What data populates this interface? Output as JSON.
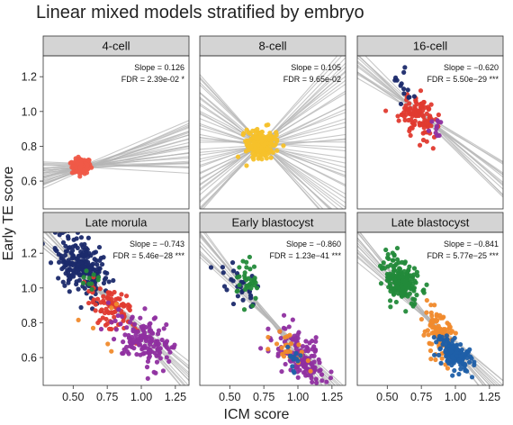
{
  "chart_data": {
    "type": "scatter",
    "title": "Linear mixed models stratified by embryo",
    "xlabel": "ICM score",
    "ylabel": "Early TE score",
    "x_ticks": [
      "0.50",
      "0.75",
      "1.00",
      "1.25"
    ],
    "y_ticks": [
      "0.6",
      "0.8",
      "1.0",
      "1.2"
    ],
    "x_tick_values": [
      0.5,
      0.75,
      1.0,
      1.25
    ],
    "y_tick_values": [
      0.6,
      0.8,
      1.0,
      1.2
    ],
    "xlim": [
      0.28,
      1.35
    ],
    "ylim": [
      0.44,
      1.32
    ],
    "grid": false,
    "colors": {
      "red": "#e03a2f",
      "orange_red": "#ef5a48",
      "yellow": "#f5c12a",
      "navy": "#1b2a6b",
      "purple": "#8f2fa0",
      "green": "#238a3a",
      "orange": "#f08a2c",
      "blue": "#1f5fa8",
      "fit_line": "#b5b5b5",
      "strip": "#d4d4d4"
    },
    "panels": [
      {
        "name": "4-cell",
        "slope_text": "Slope = 0.126",
        "fdr_text": "FDR = 2.39e-02 *",
        "slope": 0.126,
        "clusters": [
          {
            "color": "orange_red",
            "cx": 0.56,
            "cy": 0.685,
            "sx": 0.035,
            "sy": 0.022,
            "n": 140
          }
        ],
        "fit_lines": {
          "n": 30,
          "center_x": 0.6,
          "center_y": 0.685,
          "slope_min": -0.05,
          "slope_max": 0.35
        }
      },
      {
        "name": "8-cell",
        "slope_text": "Slope = 0.105",
        "fdr_text": "FDR = 9.65e-02",
        "slope": 0.105,
        "clusters": [
          {
            "color": "yellow",
            "cx": 0.73,
            "cy": 0.81,
            "sx": 0.05,
            "sy": 0.04,
            "n": 220
          }
        ],
        "fit_lines": {
          "n": 45,
          "center_x": 0.73,
          "center_y": 0.81,
          "slope_min": -0.9,
          "slope_max": 0.9
        }
      },
      {
        "name": "16-cell",
        "slope_text": "Slope = −0.620",
        "fdr_text": "FDR = 5.50e−29 ***",
        "slope": -0.62,
        "clusters": [
          {
            "color": "red",
            "cx": 0.73,
            "cy": 0.98,
            "sx": 0.06,
            "sy": 0.06,
            "n": 120
          },
          {
            "color": "navy",
            "cx": 0.62,
            "cy": 1.13,
            "sx": 0.035,
            "sy": 0.04,
            "n": 14
          },
          {
            "color": "purple",
            "cx": 0.85,
            "cy": 0.9,
            "sx": 0.04,
            "sy": 0.04,
            "n": 10
          }
        ],
        "fit_lines": {
          "n": 14,
          "center_x": 0.75,
          "center_y": 0.98,
          "slope_min": -0.8,
          "slope_max": -0.45
        }
      },
      {
        "name": "Late morula",
        "slope_text": "Slope = −0.743",
        "fdr_text": "FDR = 5.46e−28 ***",
        "slope": -0.743,
        "clusters": [
          {
            "color": "navy",
            "cx": 0.56,
            "cy": 1.12,
            "sx": 0.1,
            "sy": 0.08,
            "n": 220
          },
          {
            "color": "red",
            "cx": 0.78,
            "cy": 0.88,
            "sx": 0.09,
            "sy": 0.06,
            "n": 90
          },
          {
            "color": "purple",
            "cx": 1.02,
            "cy": 0.7,
            "sx": 0.1,
            "sy": 0.07,
            "n": 150
          },
          {
            "color": "green",
            "cx": 0.62,
            "cy": 1.02,
            "sx": 0.04,
            "sy": 0.04,
            "n": 10
          },
          {
            "color": "orange",
            "cx": 0.8,
            "cy": 0.8,
            "sx": 0.1,
            "sy": 0.1,
            "n": 6
          }
        ],
        "fit_lines": {
          "n": 14,
          "center_x": 0.8,
          "center_y": 0.9,
          "slope_min": -0.95,
          "slope_max": -0.6
        }
      },
      {
        "name": "Early blastocyst",
        "slope_text": "Slope = −0.860",
        "fdr_text": "FDR = 1.23e−41 ***",
        "slope": -0.86,
        "clusters": [
          {
            "color": "navy",
            "cx": 0.56,
            "cy": 1.05,
            "sx": 0.07,
            "sy": 0.07,
            "n": 30
          },
          {
            "color": "green",
            "cx": 0.64,
            "cy": 1.05,
            "sx": 0.04,
            "sy": 0.05,
            "n": 35
          },
          {
            "color": "purple",
            "cx": 1.02,
            "cy": 0.6,
            "sx": 0.1,
            "sy": 0.07,
            "n": 140
          },
          {
            "color": "orange",
            "cx": 0.93,
            "cy": 0.65,
            "sx": 0.06,
            "sy": 0.05,
            "n": 25
          },
          {
            "color": "blue",
            "cx": 0.97,
            "cy": 0.62,
            "sx": 0.04,
            "sy": 0.04,
            "n": 12
          }
        ],
        "fit_lines": {
          "n": 14,
          "center_x": 0.82,
          "center_y": 0.8,
          "slope_min": -1.05,
          "slope_max": -0.7
        }
      },
      {
        "name": "Late blastocyst",
        "slope_text": "Slope = −0.841",
        "fdr_text": "FDR = 5.77e−25 ***",
        "slope": -0.841,
        "clusters": [
          {
            "color": "green",
            "cx": 0.6,
            "cy": 1.04,
            "sx": 0.065,
            "sy": 0.06,
            "n": 190
          },
          {
            "color": "orange",
            "cx": 0.88,
            "cy": 0.72,
            "sx": 0.06,
            "sy": 0.06,
            "n": 110
          },
          {
            "color": "blue",
            "cx": 1.0,
            "cy": 0.62,
            "sx": 0.065,
            "sy": 0.04,
            "n": 150
          }
        ],
        "fit_lines": {
          "n": 16,
          "center_x": 0.8,
          "center_y": 0.82,
          "slope_min": -1.0,
          "slope_max": -0.65
        }
      }
    ]
  }
}
